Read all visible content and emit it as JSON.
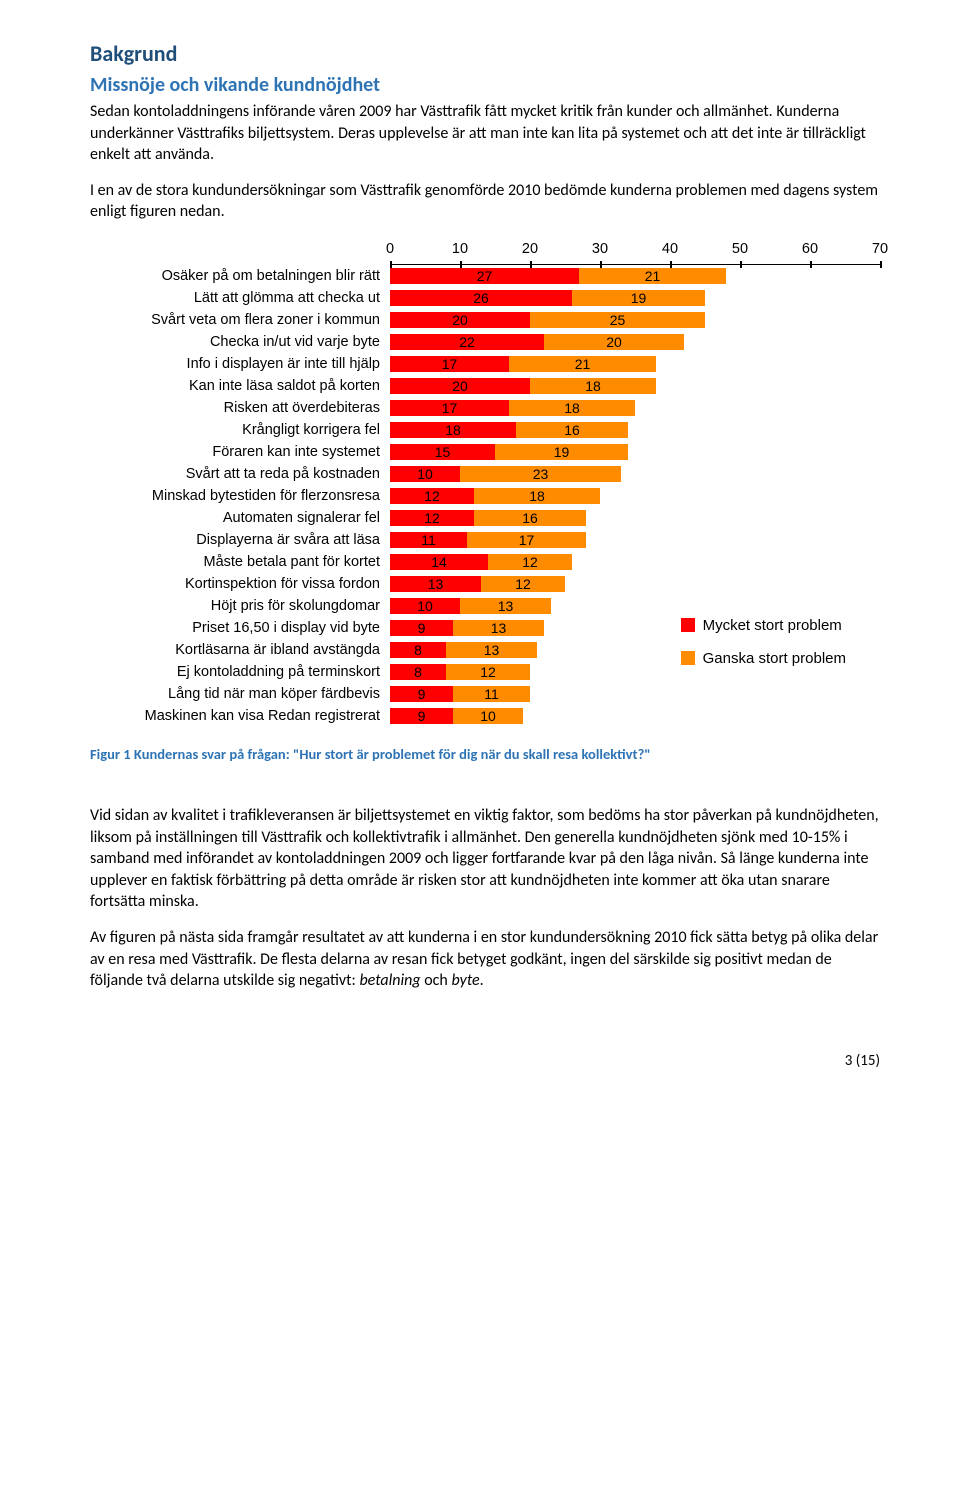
{
  "section_title": "Bakgrund",
  "subsection_title": "Missnöje och vikande kundnöjdhet",
  "para1": "Sedan kontoladdningens införande våren 2009 har Västtrafik fått mycket kritik från kunder och allmänhet. Kunderna underkänner Västtrafiks biljettsystem. Deras upplevelse är att man inte kan lita på systemet och att det inte är tillräckligt enkelt att använda.",
  "para2": "I en av de stora kundundersökningar som Västtrafik genomförde 2010 bedömde kunderna problemen med dagens system enligt figuren nedan.",
  "para3": "Vid sidan av kvalitet i trafikleveransen är biljettsystemet en viktig faktor, som bedöms ha stor påverkan på kundnöjdheten, liksom på inställningen till Västtrafik och kollektivtrafik i allmänhet. Den generella kundnöjdheten sjönk med 10-15% i samband med införandet av kontoladdningen 2009 och ligger fortfarande kvar på den låga nivån. Så länge kunderna inte upplever en faktisk förbättring på detta område är risken stor att kundnöjdheten inte kommer att öka utan snarare fortsätta minska.",
  "para4_prefix": "Av figuren på nästa sida framgår resultatet av att kunderna i en stor kundundersökning 2010 fick sätta betyg på olika delar av en resa med Västtrafik. De flesta delarna av resan fick betyget godkänt, ingen del särskilde sig positivt medan de följande två delarna utskilde sig negativt: ",
  "para4_italic1": "betalning",
  "para4_mid": " och ",
  "para4_italic2": "byte",
  "para4_suffix": ".",
  "figure_caption": "Figur 1 Kundernas svar på frågan: \"Hur stort är problemet för dig när du skall resa kollektivt?\"",
  "chart": {
    "type": "stacked-horizontal-bar",
    "x_ticks": [
      0,
      10,
      20,
      30,
      40,
      50,
      60,
      70
    ],
    "x_max": 70,
    "colors": {
      "series_a": "#ff0000",
      "series_b": "#ff8c00"
    },
    "legend": [
      {
        "label": "Mycket stort problem",
        "color": "#ff0000"
      },
      {
        "label": "Ganska stort problem",
        "color": "#ff8c00"
      }
    ],
    "rows": [
      {
        "label": "Osäker på om betalningen blir rätt",
        "a": 27,
        "b": 21
      },
      {
        "label": "Lätt att glömma att checka ut",
        "a": 26,
        "b": 19
      },
      {
        "label": "Svårt veta om flera zoner i kommun",
        "a": 20,
        "b": 25
      },
      {
        "label": "Checka in/ut vid varje byte",
        "a": 22,
        "b": 20
      },
      {
        "label": "Info i displayen är inte till hjälp",
        "a": 17,
        "b": 21
      },
      {
        "label": "Kan inte läsa saldot på korten",
        "a": 20,
        "b": 18
      },
      {
        "label": "Risken att överdebiteras",
        "a": 17,
        "b": 18
      },
      {
        "label": "Krångligt korrigera fel",
        "a": 18,
        "b": 16
      },
      {
        "label": "Föraren kan inte systemet",
        "a": 15,
        "b": 19
      },
      {
        "label": "Svårt att ta reda på kostnaden",
        "a": 10,
        "b": 23
      },
      {
        "label": "Minskad bytestiden för flerzonsresa",
        "a": 12,
        "b": 18
      },
      {
        "label": "Automaten signalerar fel",
        "a": 12,
        "b": 16
      },
      {
        "label": "Displayerna är svåra att läsa",
        "a": 11,
        "b": 17
      },
      {
        "label": "Måste betala pant för kortet",
        "a": 14,
        "b": 12
      },
      {
        "label": "Kortinspektion för vissa fordon",
        "a": 13,
        "b": 12
      },
      {
        "label": "Höjt pris för skolungdomar",
        "a": 10,
        "b": 13
      },
      {
        "label": "Priset 16,50 i display vid byte",
        "a": 9,
        "b": 13
      },
      {
        "label": "Kortläsarna är ibland avstängda",
        "a": 8,
        "b": 13
      },
      {
        "label": "Ej kontoladdning på terminskort",
        "a": 8,
        "b": 12
      },
      {
        "label": "Lång tid när man köper färdbevis",
        "a": 9,
        "b": 11
      },
      {
        "label": "Maskinen kan visa Redan registrerat",
        "a": 9,
        "b": 10
      }
    ]
  },
  "page_number": "3 (15)"
}
